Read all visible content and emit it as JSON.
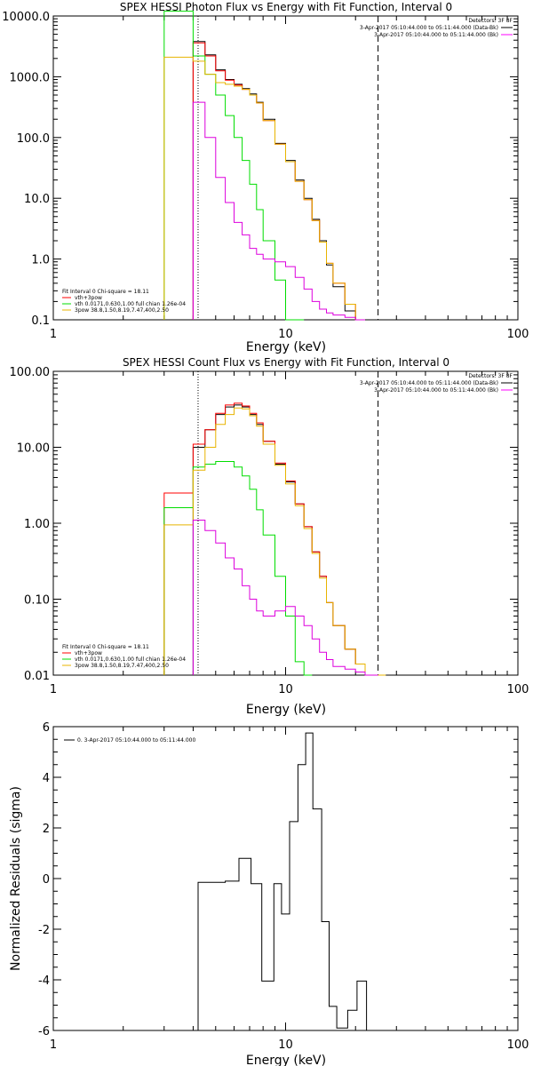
{
  "chart_data": [
    {
      "type": "line",
      "title": "SPEX HESSI Photon Flux vs Energy with Fit Function, Interval 0",
      "xlabel": "Energy (keV)",
      "ylabel": "",
      "x_scale": "log",
      "y_scale": "log",
      "xlim": [
        1,
        100
      ],
      "ylim": [
        0.1,
        10000
      ],
      "x_ticks": [
        "1",
        "10",
        "100"
      ],
      "y_ticks": [
        "0.1",
        "1.0",
        "10.0",
        "100.0",
        "1000.0",
        "10000.0"
      ],
      "detectors_label": "Detectors: 3F 8F",
      "time_legend": [
        {
          "label": "3-Apr-2017 05:10:44.000 to 05:11:44.000 (Data-Bk)",
          "color": "#000000"
        },
        {
          "label": "3-Apr-2017 05:10:44.000 to 05:11:44.000 (Bk)",
          "color": "#ff00ff"
        }
      ],
      "fit_legend": [
        {
          "label": "Fit Interval 0   Chi-square = 18.11",
          "color": "#000000"
        },
        {
          "label": "vth+3pow",
          "color": "#ff0000"
        },
        {
          "label": "vth 0.0171,0.630,1.00  full chian 1.26e-04",
          "color": "#00dd00"
        },
        {
          "label": "3pow 38.8,1.50,8.19,7.47,400,2.50",
          "color": "#e8b400"
        }
      ],
      "markers": [
        {
          "energy": 4.2,
          "style": "dotted"
        },
        {
          "energy": 25,
          "style": "dashed"
        }
      ],
      "edges": [
        3,
        4,
        4.5,
        5,
        5.5,
        6,
        6.5,
        7,
        7.5,
        8,
        9,
        10,
        11,
        12,
        13,
        14,
        15,
        16,
        18,
        20,
        22,
        25
      ],
      "series": [
        {
          "name": "Data-Bk",
          "color": "#000000",
          "values": [
            null,
            3800,
            2300,
            1300,
            900,
            750,
            640,
            520,
            380,
            200,
            80,
            42,
            20,
            10,
            4.5,
            2.0,
            0.8,
            0.35,
            0.14,
            0.1
          ]
        },
        {
          "name": "vth+3pow",
          "color": "#ff0000",
          "values": [
            null,
            3600,
            2200,
            1250,
            880,
            730,
            620,
            500,
            370,
            190,
            78,
            40,
            19,
            9.5,
            4.3,
            1.9,
            0.85,
            0.4,
            0.18,
            0.1
          ]
        },
        {
          "name": "vth",
          "color": "#00dd00",
          "values": [
            12000,
            2200,
            1100,
            500,
            230,
            100,
            42,
            17,
            6.5,
            2.0,
            0.45,
            0.1,
            0.1,
            null,
            null,
            null,
            null,
            null,
            null,
            null
          ]
        },
        {
          "name": "3pow",
          "color": "#e8b400",
          "values": [
            2100,
            1800,
            1100,
            800,
            750,
            700,
            620,
            500,
            370,
            190,
            78,
            40,
            19,
            9.5,
            4.3,
            1.9,
            0.85,
            0.4,
            0.18,
            0.1
          ]
        },
        {
          "name": "Bk",
          "color": "#dd00dd",
          "values": [
            null,
            380,
            100,
            22,
            8.5,
            4.0,
            2.5,
            1.5,
            1.2,
            1.0,
            0.9,
            0.75,
            0.5,
            0.32,
            0.2,
            0.15,
            0.13,
            0.12,
            0.11,
            0.1
          ]
        }
      ]
    },
    {
      "type": "line",
      "title": "SPEX HESSI Count Flux vs Energy with Fit Function, Interval 0",
      "xlabel": "Energy (keV)",
      "ylabel": "",
      "x_scale": "log",
      "y_scale": "log",
      "xlim": [
        1,
        100
      ],
      "ylim": [
        0.01,
        100
      ],
      "x_ticks": [
        "1",
        "10",
        "100"
      ],
      "y_ticks": [
        "0.01",
        "0.10",
        "1.00",
        "10.00",
        "100.00"
      ],
      "detectors_label": "Detectors: 3F 8F",
      "time_legend": [
        {
          "label": "3-Apr-2017 05:10:44.000 to 05:11:44.000 (Data-Bk)",
          "color": "#000000"
        },
        {
          "label": "3-Apr-2017 05:10:44.000 to 05:11:44.000 (Bk)",
          "color": "#ff00ff"
        }
      ],
      "fit_legend": [
        {
          "label": "Fit Interval 0   Chi-square = 18.11",
          "color": "#000000"
        },
        {
          "label": "vth+3pow",
          "color": "#ff0000"
        },
        {
          "label": "vth 0.0171,0.630,1.00  full chian 1.26e-04",
          "color": "#00dd00"
        },
        {
          "label": "3pow 38.8,1.50,8.19,7.47,400,2.50",
          "color": "#e8b400"
        }
      ],
      "markers": [
        {
          "energy": 4.2,
          "style": "dotted"
        },
        {
          "energy": 25,
          "style": "dashed"
        }
      ],
      "edges": [
        3,
        4,
        4.5,
        5,
        5.5,
        6,
        6.5,
        7,
        7.5,
        8,
        9,
        10,
        11,
        12,
        13,
        14,
        15,
        16,
        18,
        20,
        22,
        25,
        27
      ],
      "series": [
        {
          "name": "Data-Bk",
          "color": "#000000",
          "values": [
            null,
            10,
            17,
            27,
            34,
            36,
            34,
            27,
            20,
            12,
            6.0,
            3.5,
            1.8,
            0.9,
            0.42,
            0.2,
            0.09,
            0.045,
            0.022,
            0.014,
            0.01,
            null
          ]
        },
        {
          "name": "vth+3pow",
          "color": "#ff0000",
          "values": [
            2.5,
            11,
            17,
            28,
            36,
            38,
            35,
            28,
            21,
            12,
            6.2,
            3.6,
            1.8,
            0.9,
            0.42,
            0.2,
            0.09,
            0.045,
            0.022,
            0.014,
            0.01,
            null
          ]
        },
        {
          "name": "vth",
          "color": "#00dd00",
          "values": [
            1.6,
            5.5,
            6.0,
            6.5,
            6.5,
            5.5,
            4.2,
            2.8,
            1.5,
            0.7,
            0.2,
            0.06,
            0.015,
            0.01,
            null,
            null,
            null,
            null,
            null,
            null,
            null,
            null
          ]
        },
        {
          "name": "3pow",
          "color": "#e8b400",
          "values": [
            0.95,
            5.0,
            10,
            20,
            27,
            33,
            32,
            26,
            19,
            11,
            5.8,
            3.3,
            1.7,
            0.85,
            0.4,
            0.19,
            0.09,
            0.045,
            0.022,
            0.014,
            0.01,
            0.01
          ]
        },
        {
          "name": "Bk",
          "color": "#dd00dd",
          "values": [
            null,
            1.1,
            0.8,
            0.55,
            0.35,
            0.25,
            0.15,
            0.1,
            0.07,
            0.06,
            0.07,
            0.08,
            0.06,
            0.045,
            0.03,
            0.02,
            0.016,
            0.013,
            0.012,
            0.011,
            0.01,
            null
          ]
        }
      ]
    },
    {
      "type": "line",
      "title": "",
      "xlabel": "Energy (keV)",
      "ylabel": "Normalized Residuals (sigma)",
      "x_scale": "log",
      "y_scale": "linear",
      "xlim": [
        1,
        100
      ],
      "ylim": [
        -6,
        6
      ],
      "x_ticks": [
        "1",
        "10",
        "100"
      ],
      "y_ticks": [
        "-6",
        "-4",
        "-2",
        "0",
        "2",
        "4",
        "6"
      ],
      "legend": [
        {
          "label": "0. 3-Apr-2017 05:10:44.000 to 05:11:44.000",
          "color": "#000000"
        }
      ],
      "edges": [
        4.2,
        5.5,
        6.3,
        7.1,
        7.9,
        8.9,
        9.6,
        10.4,
        11.3,
        12.2,
        13.1,
        14.3,
        15.4,
        16.6,
        18.5,
        20.3,
        22.3,
        25.2
      ],
      "series": [
        {
          "name": "0",
          "color": "#000000",
          "values": [
            -0.15,
            -0.1,
            0.8,
            -0.2,
            -4.05,
            -0.2,
            -1.4,
            2.25,
            4.5,
            5.75,
            2.75,
            -1.7,
            -5.05,
            -5.9,
            -5.2,
            -4.05,
            -6
          ]
        }
      ]
    }
  ]
}
